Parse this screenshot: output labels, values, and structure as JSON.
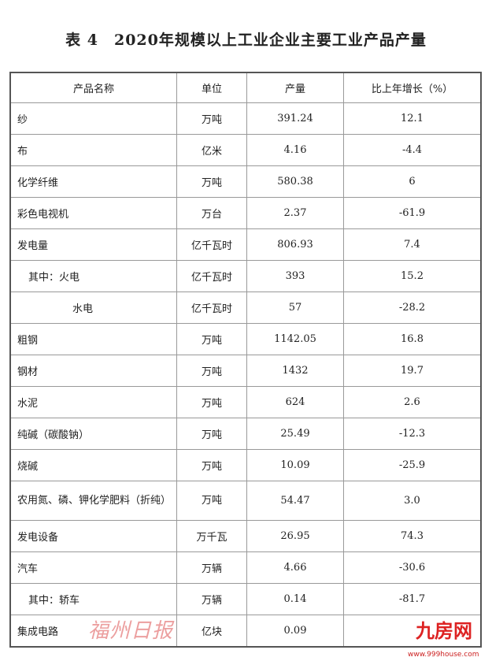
{
  "title": "表 4　2020年规模以上工业企业主要工业产品产量",
  "headers": [
    "产品名称",
    "单位",
    "产量",
    "比上年增长（%）"
  ],
  "rows": [
    {
      "name": "纱",
      "unit": "万吨",
      "output": "391.24",
      "growth": "12.1",
      "indent": 0
    },
    {
      "name": "布",
      "unit": "亿米",
      "output": "4.16",
      "growth": "-4.4",
      "indent": 0
    },
    {
      "name": "化学纤维",
      "unit": "万吨",
      "output": "580.38",
      "growth": "6",
      "indent": 0
    },
    {
      "name": "彩色电视机",
      "unit": "万台",
      "output": "2.37",
      "growth": "-61.9",
      "indent": 0
    },
    {
      "name": "发电量",
      "unit": "亿千瓦时",
      "output": "806.93",
      "growth": "7.4",
      "indent": 0
    },
    {
      "name": "其中：火电",
      "unit": "亿千瓦时",
      "output": "393",
      "growth": "15.2",
      "indent": 1
    },
    {
      "name": "水电",
      "unit": "亿千瓦时",
      "output": "57",
      "growth": "-28.2",
      "indent": 2
    },
    {
      "name": "粗钢",
      "unit": "万吨",
      "output": "1142.05",
      "growth": "16.8",
      "indent": 0
    },
    {
      "name": "钢材",
      "unit": "万吨",
      "output": "1432",
      "growth": "19.7",
      "indent": 0
    },
    {
      "name": "水泥",
      "unit": "万吨",
      "output": "624",
      "growth": "2.6",
      "indent": 0
    },
    {
      "name": "纯碱（碳酸钠）",
      "unit": "万吨",
      "output": "25.49",
      "growth": "-12.3",
      "indent": 0
    },
    {
      "name": "烧碱",
      "unit": "万吨",
      "output": "10.09",
      "growth": "-25.9",
      "indent": 0
    },
    {
      "name": "农用氮、磷、钾化学肥料（折纯）",
      "unit": "万吨",
      "output": "54.47",
      "growth": "3.0",
      "indent": 0,
      "tall": true
    },
    {
      "name": "发电设备",
      "unit": "万千瓦",
      "output": "26.95",
      "growth": "74.3",
      "indent": 0
    },
    {
      "name": "汽车",
      "unit": "万辆",
      "output": "4.66",
      "growth": "-30.6",
      "indent": 0
    },
    {
      "name": "其中：轿车",
      "unit": "万辆",
      "output": "0.14",
      "growth": "-81.7",
      "indent": 1
    },
    {
      "name": "集成电路",
      "unit": "亿块",
      "output": "0.09",
      "growth": "",
      "indent": 0
    }
  ],
  "watermarks": {
    "newspaper": "福州日报",
    "site_logo": "九房网",
    "site_url": "www.999house.com"
  }
}
